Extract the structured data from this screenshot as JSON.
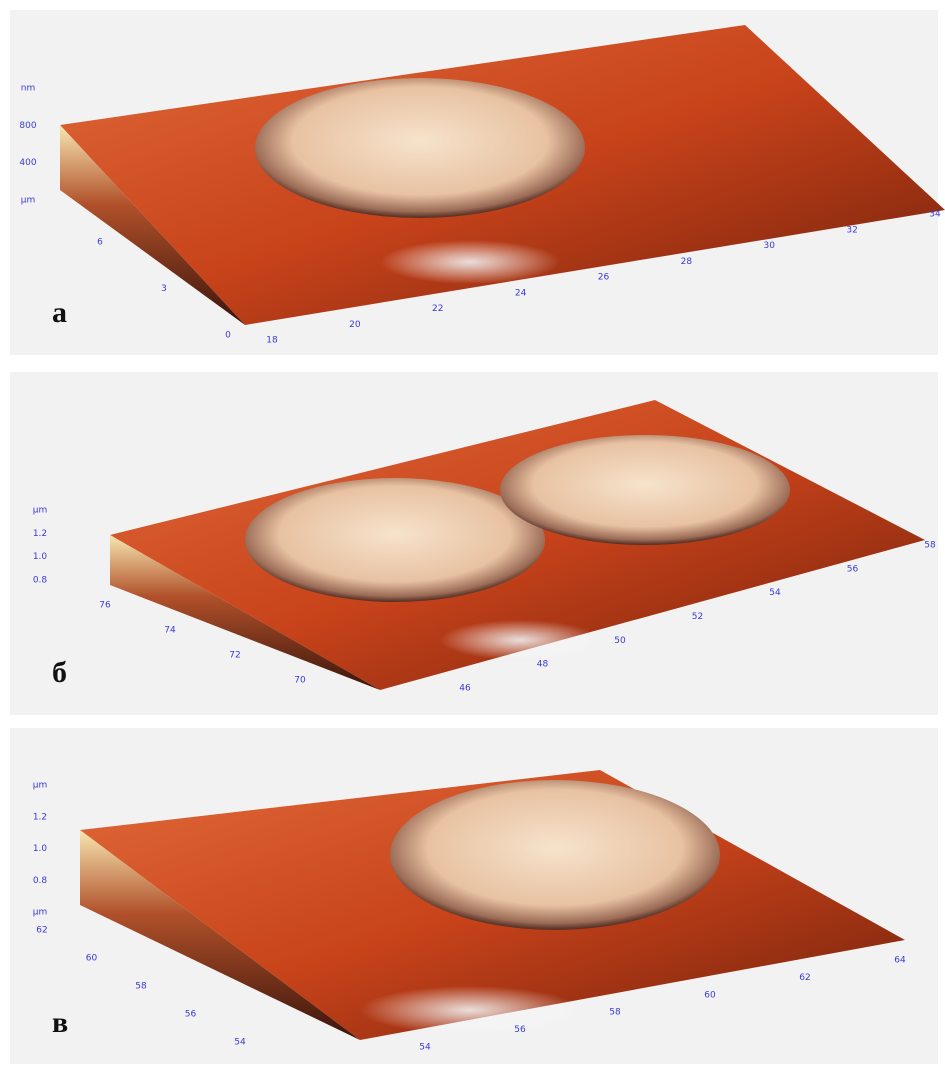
{
  "panels": [
    {
      "label": "а",
      "z_labels": [
        "nm",
        "800",
        "400",
        "μm"
      ],
      "y_labels": [
        "6",
        "3",
        "0"
      ],
      "x_labels": [
        "18",
        "20",
        "22",
        "24",
        "26",
        "28",
        "30",
        "32",
        "34"
      ]
    },
    {
      "label": "б",
      "z_labels": [
        "μm",
        "1.2",
        "1.0",
        "0.8"
      ],
      "y_labels": [
        "76",
        "74",
        "72",
        "70"
      ],
      "x_labels": [
        "46",
        "48",
        "50",
        "52",
        "54",
        "56",
        "58"
      ]
    },
    {
      "label": "в",
      "z_labels": [
        "μm",
        "1.2",
        "1.0",
        "0.8",
        "μm"
      ],
      "y_labels": [
        "62",
        "60",
        "58",
        "56",
        "54"
      ],
      "x_labels": [
        "54",
        "56",
        "58",
        "60",
        "62",
        "64"
      ]
    }
  ]
}
